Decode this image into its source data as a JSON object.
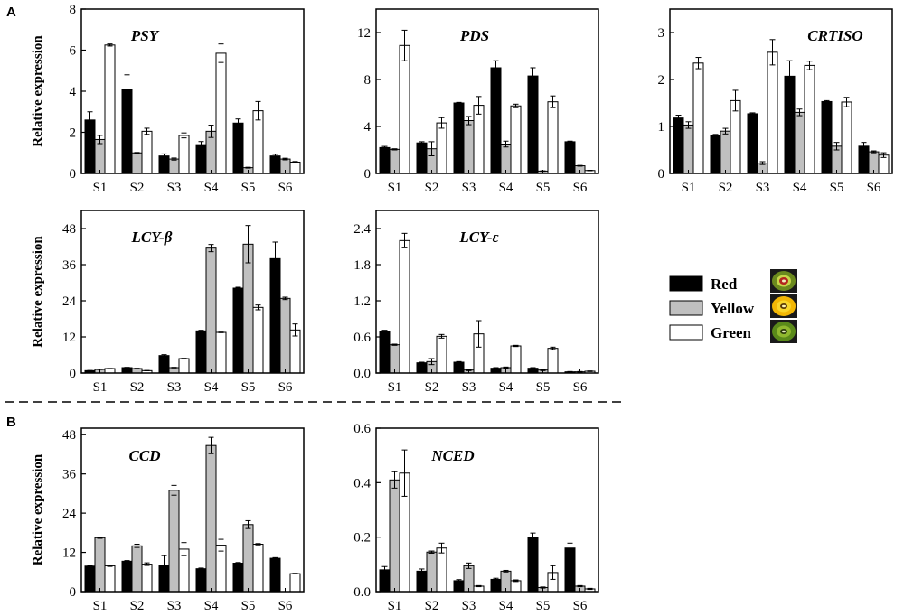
{
  "panel_labels": {
    "a": "A",
    "b": "B"
  },
  "legend": {
    "entries": [
      {
        "label": "Red",
        "color": "#000000",
        "icon": "red-kiwi-slice-icon"
      },
      {
        "label": "Yellow",
        "color": "#c0c0c0",
        "icon": "yellow-kiwi-slice-icon"
      },
      {
        "label": "Green",
        "color": "#ffffff",
        "icon": "green-kiwi-slice-icon"
      }
    ]
  },
  "chart_data": [
    {
      "type": "bar",
      "panel": "A",
      "title": "PSY",
      "ylabel": "Relative expression",
      "categories": [
        "S1",
        "S2",
        "S3",
        "S4",
        "S5",
        "S6"
      ],
      "ylim": [
        0,
        8
      ],
      "yticks": [
        "0",
        "2",
        "4",
        "6",
        "8"
      ],
      "series": [
        {
          "name": "Red",
          "values": [
            2.6,
            4.1,
            0.85,
            1.4,
            2.45,
            0.85
          ],
          "errors": [
            0.4,
            0.7,
            0.1,
            0.15,
            0.2,
            0.08
          ]
        },
        {
          "name": "Yellow",
          "values": [
            1.65,
            1.0,
            0.7,
            2.05,
            0.28,
            0.7
          ],
          "errors": [
            0.2,
            0.02,
            0.05,
            0.3,
            0.02,
            0.04
          ]
        },
        {
          "name": "Green",
          "values": [
            6.25,
            2.05,
            1.85,
            5.85,
            3.05,
            0.55
          ],
          "errors": [
            0.05,
            0.15,
            0.12,
            0.45,
            0.45,
            0.03
          ]
        }
      ]
    },
    {
      "type": "bar",
      "panel": "A",
      "title": "PDS",
      "ylabel": "",
      "categories": [
        "S1",
        "S2",
        "S3",
        "S4",
        "S5",
        "S6"
      ],
      "ylim": [
        0,
        14
      ],
      "yticks": [
        "0",
        "4",
        "8",
        "12"
      ],
      "series": [
        {
          "name": "Red",
          "values": [
            2.2,
            2.6,
            6.0,
            9.0,
            8.3,
            2.7
          ],
          "errors": [
            0.1,
            0.1,
            0.05,
            0.6,
            0.7,
            0.05
          ]
        },
        {
          "name": "Yellow",
          "values": [
            2.05,
            2.1,
            4.5,
            2.5,
            0.2,
            0.65
          ],
          "errors": [
            0.05,
            0.6,
            0.35,
            0.25,
            0.02,
            0.03
          ]
        },
        {
          "name": "Green",
          "values": [
            10.9,
            4.3,
            5.8,
            5.75,
            6.1,
            0.25
          ],
          "errors": [
            1.3,
            0.45,
            0.75,
            0.15,
            0.5,
            0.02
          ]
        }
      ]
    },
    {
      "type": "bar",
      "panel": "A",
      "title": "CRTISO",
      "ylabel": "",
      "categories": [
        "S1",
        "S2",
        "S3",
        "S4",
        "S5",
        "S6"
      ],
      "ylim": [
        0,
        3.5
      ],
      "yticks": [
        "0",
        "1",
        "2",
        "3"
      ],
      "series": [
        {
          "name": "Red",
          "values": [
            1.18,
            0.8,
            1.27,
            2.07,
            1.53,
            0.58
          ],
          "errors": [
            0.06,
            0.03,
            0.02,
            0.33,
            0.02,
            0.08
          ]
        },
        {
          "name": "Yellow",
          "values": [
            1.03,
            0.9,
            0.22,
            1.3,
            0.58,
            0.46
          ],
          "errors": [
            0.07,
            0.06,
            0.03,
            0.07,
            0.08,
            0.02
          ]
        },
        {
          "name": "Green",
          "values": [
            2.35,
            1.55,
            2.58,
            2.3,
            1.52,
            0.39
          ],
          "errors": [
            0.12,
            0.22,
            0.27,
            0.09,
            0.1,
            0.05
          ]
        }
      ]
    },
    {
      "type": "bar",
      "panel": "A",
      "title": "LCY-β",
      "ylabel": "Relative expression",
      "categories": [
        "S1",
        "S2",
        "S3",
        "S4",
        "S5",
        "S6"
      ],
      "ylim": [
        0,
        54
      ],
      "yticks": [
        "0",
        "12",
        "24",
        "36",
        "48"
      ],
      "series": [
        {
          "name": "Red",
          "values": [
            0.8,
            1.8,
            5.8,
            14.0,
            28.2,
            38.0
          ],
          "errors": [
            0.05,
            0.1,
            0.3,
            0.2,
            0.3,
            5.5
          ]
        },
        {
          "name": "Yellow",
          "values": [
            1.2,
            1.5,
            1.8,
            41.5,
            42.8,
            24.8
          ],
          "errors": [
            0.05,
            0.1,
            0.1,
            1.2,
            6.2,
            0.4
          ]
        },
        {
          "name": "Green",
          "values": [
            1.5,
            0.8,
            4.8,
            13.5,
            21.8,
            14.3
          ],
          "errors": [
            0.05,
            0.05,
            0.1,
            0.1,
            0.8,
            2.0
          ]
        }
      ]
    },
    {
      "type": "bar",
      "panel": "A",
      "title": "LCY-ε",
      "ylabel": "",
      "categories": [
        "S1",
        "S2",
        "S3",
        "S4",
        "S5",
        "S6"
      ],
      "ylim": [
        0,
        2.7
      ],
      "yticks": [
        "0.0",
        "0.6",
        "1.2",
        "1.8",
        "2.4"
      ],
      "series": [
        {
          "name": "Red",
          "values": [
            0.69,
            0.17,
            0.18,
            0.08,
            0.08,
            0.02
          ],
          "errors": [
            0.02,
            0.01,
            0.01,
            0.01,
            0.01,
            0.005
          ]
        },
        {
          "name": "Yellow",
          "values": [
            0.47,
            0.19,
            0.05,
            0.09,
            0.05,
            0.02
          ],
          "errors": [
            0.01,
            0.05,
            0.01,
            0.01,
            0.01,
            0.005
          ]
        },
        {
          "name": "Green",
          "values": [
            2.2,
            0.61,
            0.65,
            0.45,
            0.41,
            0.03
          ],
          "errors": [
            0.12,
            0.03,
            0.22,
            0.01,
            0.02,
            0.005
          ]
        }
      ]
    },
    {
      "type": "bar",
      "panel": "B",
      "title": "CCD",
      "ylabel": "Relative expression",
      "categories": [
        "S1",
        "S2",
        "S3",
        "S4",
        "S5",
        "S6"
      ],
      "ylim": [
        0,
        50
      ],
      "yticks": [
        "0",
        "12",
        "24",
        "36",
        "48"
      ],
      "series": [
        {
          "name": "Red",
          "values": [
            7.8,
            9.3,
            8.0,
            7.0,
            8.7,
            10.2
          ],
          "errors": [
            0.2,
            0.2,
            3.0,
            0.2,
            0.2,
            0.2
          ]
        },
        {
          "name": "Yellow",
          "values": [
            16.5,
            14.0,
            31.0,
            44.7,
            20.5,
            0
          ],
          "errors": [
            0.2,
            0.5,
            1.5,
            2.5,
            1.2,
            0
          ]
        },
        {
          "name": "Green",
          "values": [
            7.9,
            8.4,
            13.0,
            14.2,
            14.5,
            5.5
          ],
          "errors": [
            0.2,
            0.4,
            2.0,
            1.8,
            0.2,
            0.1
          ]
        }
      ]
    },
    {
      "type": "bar",
      "panel": "B",
      "title": "NCED",
      "ylabel": "",
      "categories": [
        "S1",
        "S2",
        "S3",
        "S4",
        "S5",
        "S6"
      ],
      "ylim": [
        0,
        0.6
      ],
      "yticks": [
        "0.0",
        "0.2",
        "0.4",
        "0.6"
      ],
      "series": [
        {
          "name": "Red",
          "values": [
            0.08,
            0.075,
            0.04,
            0.045,
            0.2,
            0.16
          ],
          "errors": [
            0.012,
            0.008,
            0.004,
            0.004,
            0.015,
            0.018
          ]
        },
        {
          "name": "Yellow",
          "values": [
            0.41,
            0.145,
            0.095,
            0.075,
            0.015,
            0.02
          ],
          "errors": [
            0.03,
            0.004,
            0.01,
            0.003,
            0.002,
            0.002
          ]
        },
        {
          "name": "Green",
          "values": [
            0.435,
            0.16,
            0.02,
            0.04,
            0.07,
            0.01
          ],
          "errors": [
            0.085,
            0.018,
            0.002,
            0.003,
            0.025,
            0.002
          ]
        }
      ]
    }
  ]
}
